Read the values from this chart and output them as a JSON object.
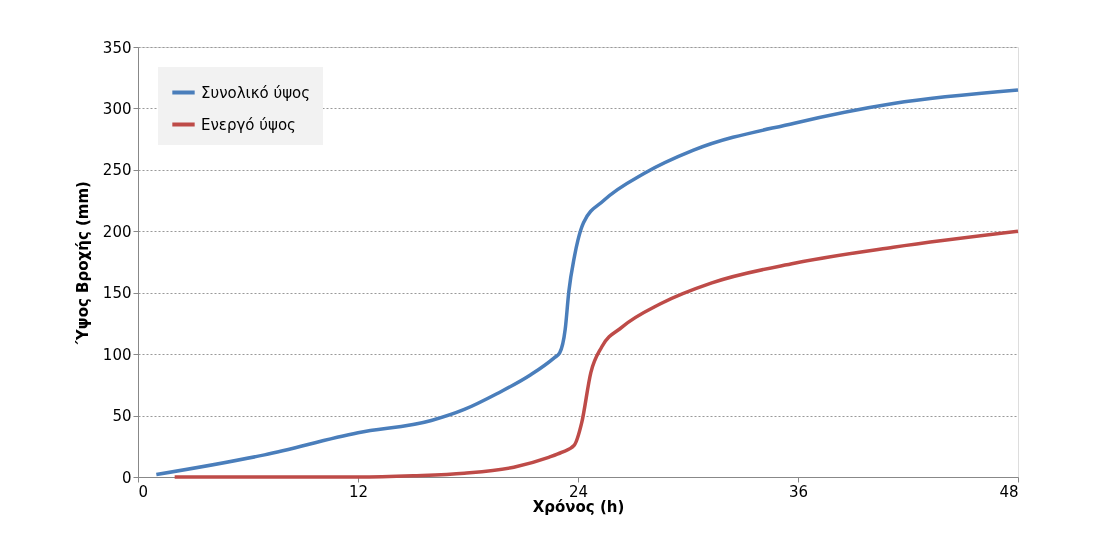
{
  "chart_data": {
    "type": "line",
    "xlabel": "Χρόνος (h)",
    "ylabel": "Ύψος Βροχής (mm)",
    "xlim": [
      0,
      48
    ],
    "xticks": [
      0,
      12,
      24,
      36,
      48
    ],
    "ylim": [
      0,
      350
    ],
    "yticks": [
      0,
      50,
      100,
      150,
      200,
      250,
      300,
      350
    ],
    "grid": "y",
    "legend": "top left",
    "line_style": "solid",
    "marker": "none",
    "series": [
      {
        "name": "Συνολικό ύψος",
        "color": "#4a7ebb",
        "x": [
          1,
          6.9,
          12,
          16,
          17.8,
          19.6,
          21.4,
          22.7,
          23,
          23.3,
          23.5,
          23.8,
          24,
          24.3,
          25.4,
          27.6,
          30.3,
          35.8,
          41.2,
          48
        ],
        "values": [
          2,
          18,
          36,
          46,
          55,
          68,
          83,
          97,
          101,
          120,
          151,
          179,
          193,
          207,
          225,
          247,
          266,
          288,
          304,
          315
        ]
      },
      {
        "name": "Ενεργό ύψος",
        "color": "#be4b48",
        "x": [
          2,
          12,
          15,
          17.8,
          20.5,
          22.4,
          23.1,
          23.8,
          24.2,
          24.7,
          25.3,
          26.4,
          28.5,
          31.3,
          35.8,
          41.2,
          48
        ],
        "values": [
          0,
          0,
          1,
          3,
          8,
          16,
          20,
          26,
          44,
          85,
          106,
          122,
          141,
          158,
          174,
          187,
          200
        ]
      }
    ]
  }
}
